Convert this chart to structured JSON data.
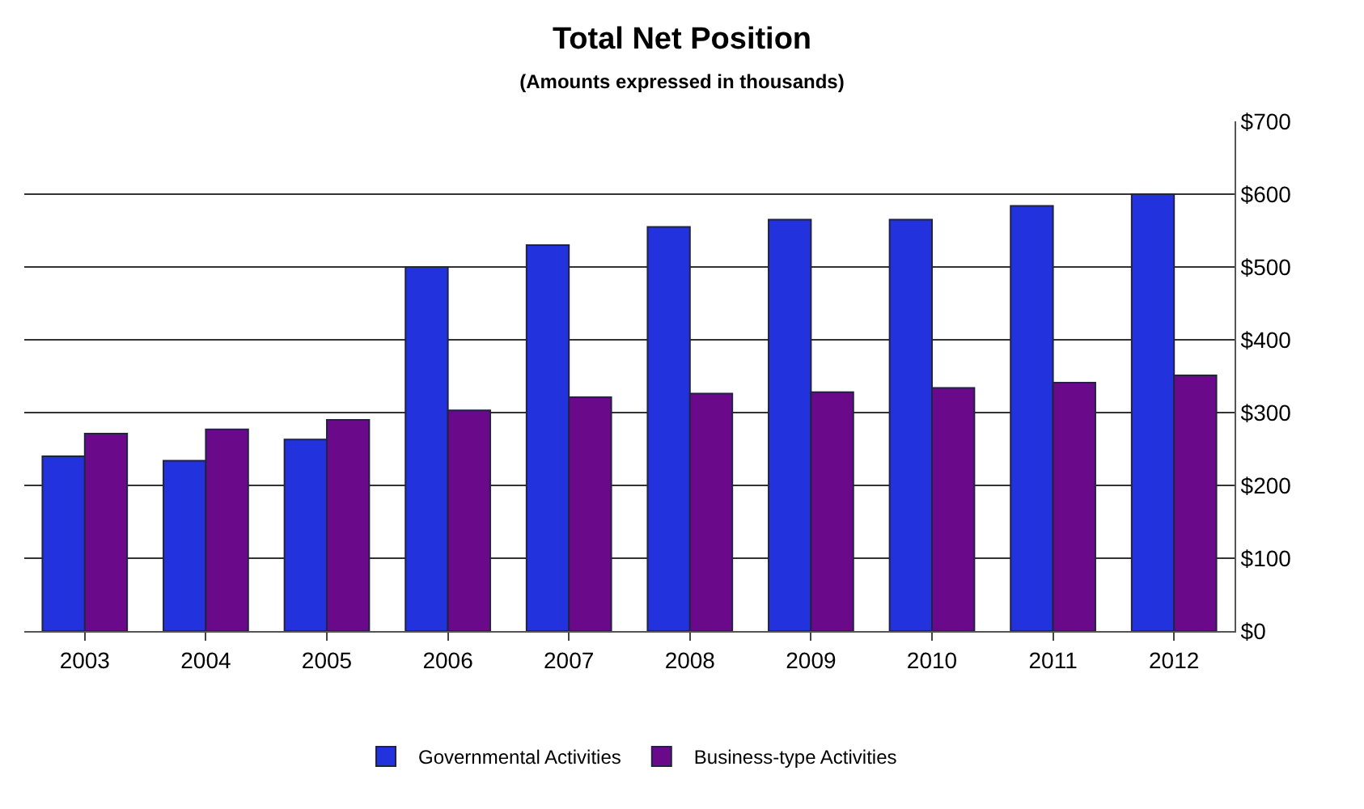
{
  "chart_data": {
    "type": "bar",
    "title": "Total Net Position",
    "subtitle": "(Amounts expressed in thousands)",
    "categories": [
      "2003",
      "2004",
      "2005",
      "2006",
      "2007",
      "2008",
      "2009",
      "2010",
      "2011",
      "2012"
    ],
    "series": [
      {
        "name": "Governmental Activities",
        "color": "#2233dd",
        "values": [
          240,
          234,
          263,
          500,
          530,
          555,
          565,
          565,
          584,
          600
        ]
      },
      {
        "name": "Business-type Activities",
        "color": "#6a0a8a",
        "values": [
          271,
          277,
          290,
          303,
          321,
          326,
          328,
          334,
          341,
          351
        ]
      }
    ],
    "ylim": [
      0,
      700
    ],
    "yticks": [
      {
        "value": 0,
        "label": "$0"
      },
      {
        "value": 100,
        "label": "$100"
      },
      {
        "value": 200,
        "label": "$200"
      },
      {
        "value": 300,
        "label": "$300"
      },
      {
        "value": 400,
        "label": "$400"
      },
      {
        "value": 500,
        "label": "$500"
      },
      {
        "value": 600,
        "label": "$600"
      },
      {
        "value": 700,
        "label": "$700"
      }
    ],
    "grid": "y",
    "legend": "bottom"
  }
}
